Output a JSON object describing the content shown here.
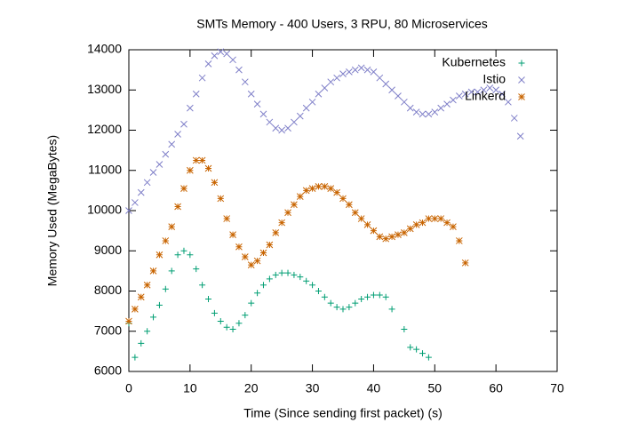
{
  "chart_data": {
    "type": "scatter",
    "title": "SMTs Memory - 400 Users, 3 RPU, 80 Microservices",
    "x_label": "Time (Since sending first packet) (s)",
    "y_label": "Memory Used (MegaBytes)",
    "xlim": [
      0,
      70
    ],
    "ylim": [
      6000,
      14000
    ],
    "xticks": [
      0,
      10,
      20,
      30,
      40,
      50,
      60,
      70
    ],
    "yticks": [
      6000,
      7000,
      8000,
      9000,
      10000,
      11000,
      12000,
      13000,
      14000
    ],
    "grid": false,
    "legend": "top-right",
    "series": [
      {
        "name": "Kubernetes",
        "color": "#009e73",
        "marker": "plus",
        "x": [
          0,
          1,
          2,
          3,
          4,
          5,
          6,
          7,
          8,
          9,
          10,
          11,
          12,
          13,
          14,
          15,
          16,
          17,
          18,
          19,
          20,
          21,
          22,
          23,
          24,
          25,
          26,
          27,
          28,
          29,
          30,
          31,
          32,
          33,
          34,
          35,
          36,
          37,
          38,
          39,
          40,
          41,
          42,
          43,
          45,
          46,
          47,
          48,
          49
        ],
        "values": [
          7200,
          6350,
          6700,
          7000,
          7350,
          7650,
          8050,
          8500,
          8900,
          9000,
          8900,
          8550,
          8150,
          7800,
          7450,
          7250,
          7100,
          7050,
          7200,
          7400,
          7700,
          7950,
          8150,
          8300,
          8400,
          8450,
          8450,
          8400,
          8350,
          8250,
          8150,
          8000,
          7850,
          7700,
          7600,
          7550,
          7600,
          7700,
          7800,
          7850,
          7900,
          7900,
          7850,
          7550,
          7050,
          6600,
          6550,
          6450,
          6350
        ]
      },
      {
        "name": "Istio",
        "color": "#7f7fc8",
        "marker": "cross",
        "x": [
          0,
          1,
          2,
          3,
          4,
          5,
          6,
          7,
          8,
          9,
          10,
          11,
          12,
          13,
          14,
          15,
          16,
          17,
          18,
          19,
          20,
          21,
          22,
          23,
          24,
          25,
          26,
          27,
          28,
          29,
          30,
          31,
          32,
          33,
          34,
          35,
          36,
          37,
          38,
          39,
          40,
          41,
          42,
          43,
          44,
          45,
          46,
          47,
          48,
          49,
          50,
          51,
          52,
          53,
          54,
          55,
          56,
          57,
          58,
          59,
          60,
          61,
          62,
          63,
          64
        ],
        "values": [
          10000,
          10200,
          10450,
          10700,
          10950,
          11150,
          11400,
          11650,
          11900,
          12150,
          12550,
          12900,
          13300,
          13650,
          13850,
          13950,
          13900,
          13750,
          13500,
          13200,
          12900,
          12650,
          12400,
          12200,
          12050,
          12000,
          12050,
          12200,
          12350,
          12550,
          12700,
          12900,
          13050,
          13200,
          13300,
          13400,
          13450,
          13500,
          13550,
          13500,
          13450,
          13300,
          13150,
          13000,
          12850,
          12700,
          12550,
          12450,
          12400,
          12400,
          12450,
          12550,
          12650,
          12750,
          12850,
          12900,
          12950,
          12950,
          13000,
          13050,
          13000,
          12900,
          12700,
          12300,
          11850
        ]
      },
      {
        "name": "Linkerd",
        "color": "#c86400",
        "marker": "star",
        "x": [
          0,
          1,
          2,
          3,
          4,
          5,
          6,
          7,
          8,
          9,
          10,
          11,
          12,
          13,
          14,
          15,
          16,
          17,
          18,
          19,
          20,
          21,
          22,
          23,
          24,
          25,
          26,
          27,
          28,
          29,
          30,
          31,
          32,
          33,
          34,
          35,
          36,
          37,
          38,
          39,
          40,
          41,
          42,
          43,
          44,
          45,
          46,
          47,
          48,
          49,
          50,
          51,
          52,
          53,
          54,
          55
        ],
        "values": [
          7250,
          7550,
          7850,
          8150,
          8500,
          8900,
          9250,
          9600,
          10100,
          10550,
          11000,
          11250,
          11250,
          11050,
          10700,
          10300,
          9800,
          9400,
          9100,
          8850,
          8650,
          8750,
          8950,
          9150,
          9450,
          9700,
          9950,
          10150,
          10350,
          10500,
          10550,
          10600,
          10600,
          10550,
          10450,
          10300,
          10150,
          9950,
          9800,
          9650,
          9500,
          9350,
          9300,
          9350,
          9400,
          9450,
          9550,
          9650,
          9700,
          9800,
          9800,
          9800,
          9700,
          9600,
          9250,
          8700
        ]
      }
    ]
  }
}
